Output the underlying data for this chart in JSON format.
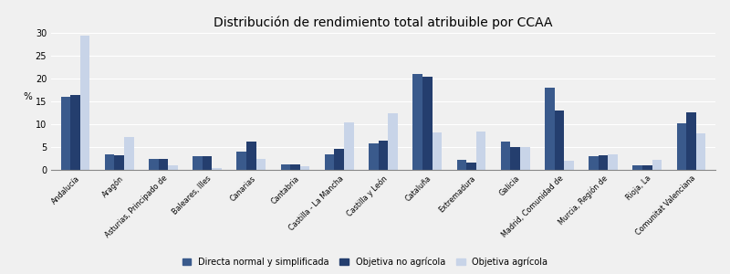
{
  "title": "Distribución de rendimiento total atribuible por CCAA",
  "categories": [
    "Andalucía",
    "Aragón",
    "Asturias, Principado de",
    "Baleares, Illes",
    "Canarias",
    "Cantabria",
    "Castilla - La Mancha",
    "Castilla y León",
    "Cataluña",
    "Extremadura",
    "Galicia",
    "Madrid, Comunidad de",
    "Murcia, Región de",
    "Rioja, La",
    "Comunitat Valenciana"
  ],
  "series": {
    "Directa normal y simplificada": [
      16.0,
      3.5,
      2.5,
      3.0,
      4.0,
      1.2,
      3.5,
      5.8,
      21.0,
      2.2,
      6.2,
      18.0,
      3.0,
      1.0,
      10.2
    ],
    "Objetiva no agrícola": [
      16.5,
      3.2,
      2.5,
      3.0,
      6.2,
      1.2,
      4.7,
      6.5,
      20.5,
      1.6,
      5.0,
      13.0,
      3.2,
      1.0,
      12.7
    ],
    "Objetiva agrícola": [
      29.5,
      7.2,
      1.1,
      0.4,
      2.5,
      0.9,
      10.5,
      12.5,
      8.2,
      8.5,
      5.0,
      2.0,
      3.5,
      2.2,
      8.0
    ]
  },
  "colors": {
    "Directa normal y simplificada": "#3a5a8c",
    "Objetiva no agrícola": "#243e6e",
    "Objetiva agrícola": "#c8d4e8"
  },
  "ylabel": "%",
  "ylim": [
    0,
    30
  ],
  "yticks": [
    0,
    5,
    10,
    15,
    20,
    25,
    30
  ],
  "legend_labels": [
    "Directa normal y simplificada",
    "Objetiva no agrícola",
    "Objetiva agrícola"
  ],
  "background_color": "#f0f0f0",
  "grid_color": "#ffffff",
  "title_fontsize": 10,
  "bar_width": 0.22
}
